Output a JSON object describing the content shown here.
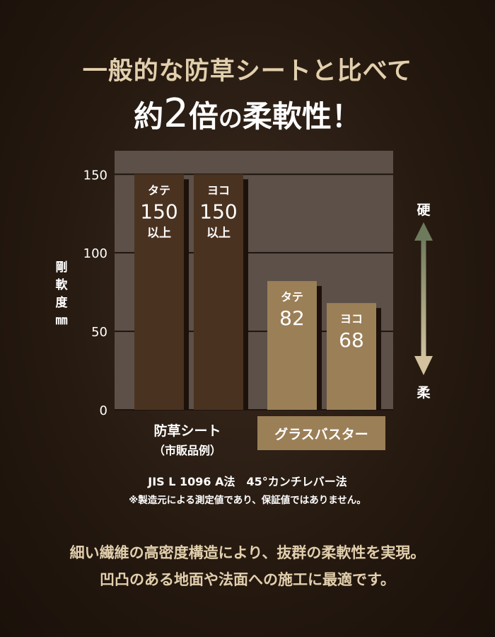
{
  "headline": {
    "line1": "一般的な防草シートと比べて",
    "line2_prefix": "約",
    "line2_number": "2",
    "line2_mid": "倍",
    "line2_particle": "の",
    "line2_suffix": "柔軟性！"
  },
  "chart_data": {
    "type": "bar",
    "ylabel": "剛軟度 ㎜",
    "ylim": [
      0,
      165
    ],
    "yticks": [
      0,
      50,
      100,
      150
    ],
    "grid": true,
    "groups": [
      {
        "name": "防草シート",
        "subname": "（市販品例）",
        "bars": [
          {
            "label": "タテ",
            "value": 150,
            "value_text": "150",
            "suffix": "以上"
          },
          {
            "label": "ヨコ",
            "value": 150,
            "value_text": "150",
            "suffix": "以上"
          }
        ]
      },
      {
        "name": "グラスバスター",
        "bars": [
          {
            "label": "タテ",
            "value": 82,
            "value_text": "82"
          },
          {
            "label": "ヨコ",
            "value": 68,
            "value_text": "68"
          }
        ]
      }
    ],
    "scale_arrow": {
      "top": "硬",
      "bottom": "柔"
    }
  },
  "colors": {
    "plot_bg": "#5c5048",
    "competitor_bar": "#4a3220",
    "product_bar": "#9b7f57",
    "bar_shadow": "#1c120b",
    "headline_gold": "#e2cfad"
  },
  "notes": {
    "method": "JIS L 1096 A法　45°カンチレバー法",
    "disclaimer": "※製造元による測定値であり、保証値ではありません。"
  },
  "description": {
    "line1": "細い繊維の高密度構造により、抜群の柔軟性を実現。",
    "line2": "凹凸のある地面や法面への施工に最適です。"
  }
}
